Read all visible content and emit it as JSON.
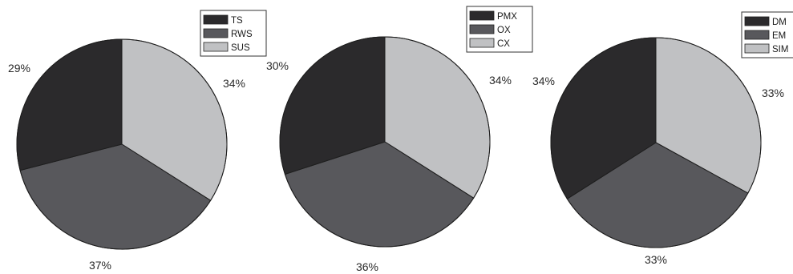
{
  "chart_data": [
    {
      "type": "pie",
      "slices": [
        {
          "label": "SUS",
          "value": 34,
          "pct_label": "34%",
          "color": "#c0c1c3"
        },
        {
          "label": "RWS",
          "value": 37,
          "pct_label": "37%",
          "color": "#58585c"
        },
        {
          "label": "TS",
          "value": 29,
          "pct_label": "29%",
          "color": "#2b2a2c"
        }
      ],
      "legend": [
        "TS",
        "RWS",
        "SUS"
      ],
      "legend_placement": "top-right"
    },
    {
      "type": "pie",
      "slices": [
        {
          "label": "CX",
          "value": 34,
          "pct_label": "34%",
          "color": "#c0c1c3"
        },
        {
          "label": "OX",
          "value": 36,
          "pct_label": "36%",
          "color": "#58585c"
        },
        {
          "label": "PMX",
          "value": 30,
          "pct_label": "30%",
          "color": "#2b2a2c"
        }
      ],
      "legend": [
        "PMX",
        "OX",
        "CX"
      ],
      "legend_placement": "top-right"
    },
    {
      "type": "pie",
      "slices": [
        {
          "label": "SIM",
          "value": 33,
          "pct_label": "33%",
          "color": "#c0c1c3"
        },
        {
          "label": "EM",
          "value": 33,
          "pct_label": "33%",
          "color": "#58585c"
        },
        {
          "label": "DM",
          "value": 34,
          "pct_label": "34%",
          "color": "#2b2a2c"
        }
      ],
      "legend": [
        "DM",
        "EM",
        "SIM"
      ],
      "legend_placement": "top-right"
    }
  ]
}
